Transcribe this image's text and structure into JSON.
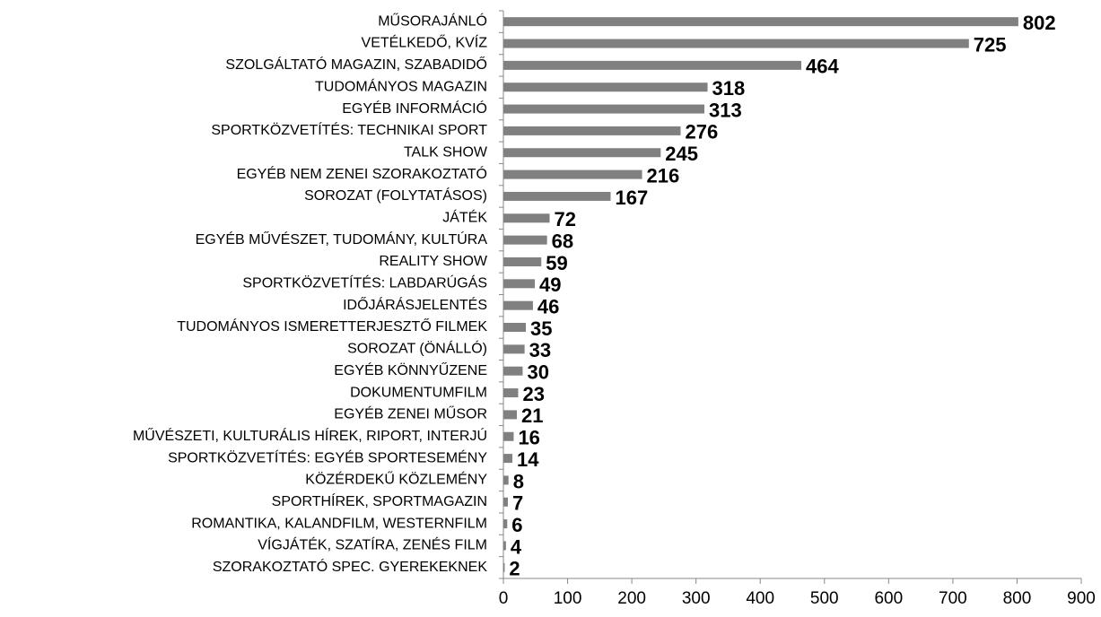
{
  "chart_data": {
    "type": "barh",
    "categories": [
      "MŰSORAJÁNLÓ",
      "VETÉLKEDŐ, KVÍZ",
      "SZOLGÁLTATÓ MAGAZIN, SZABADIDŐ",
      "TUDOMÁNYOS MAGAZIN",
      "EGYÉB INFORMÁCIÓ",
      "SPORTKÖZVETÍTÉS: TECHNIKAI SPORT",
      "TALK SHOW",
      "EGYÉB NEM ZENEI SZORAKOZTATÓ",
      "SOROZAT (FOLYTATÁSOS)",
      "JÁTÉK",
      "EGYÉB MŰVÉSZET, TUDOMÁNY, KULTÚRA",
      "REALITY SHOW",
      "SPORTKÖZVETÍTÉS: LABDARÚGÁS",
      "IDŐJÁRÁSJELENTÉS",
      "TUDOMÁNYOS ISMERETTERJESZTŐ FILMEK",
      "SOROZAT (ÖNÁLLÓ)",
      "EGYÉB KÖNNYŰZENE",
      "DOKUMENTUMFILM",
      "EGYÉB ZENEI MŰSOR",
      "MŰVÉSZETI, KULTURÁLIS HÍREK, RIPORT, INTERJÚ",
      "SPORTKÖZVETÍTÉS: EGYÉB SPORTESEMÉNY",
      "KÖZÉRDEKŰ KÖZLEMÉNY",
      "SPORTHÍREK, SPORTMAGAZIN",
      "ROMANTIKA, KALANDFILM, WESTERNFILM",
      "VÍGJÁTÉK, SZATÍRA, ZENÉS FILM",
      "SZORAKOZTATÓ SPEC. GYEREKEKNEK"
    ],
    "values": [
      802,
      725,
      464,
      318,
      313,
      276,
      245,
      216,
      167,
      72,
      68,
      59,
      49,
      46,
      35,
      33,
      30,
      23,
      21,
      16,
      14,
      8,
      7,
      6,
      4,
      2
    ],
    "color": "#808080",
    "xlim": [
      0,
      900
    ],
    "xticks": [
      0,
      100,
      200,
      300,
      400,
      500,
      600,
      700,
      800,
      900
    ]
  }
}
